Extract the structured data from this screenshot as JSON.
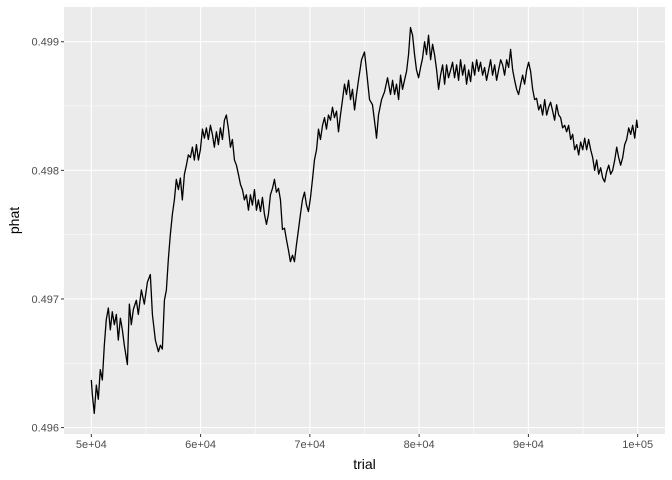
{
  "chart_data": {
    "type": "line",
    "title": "",
    "xlabel": "trial",
    "ylabel": "phat",
    "xlim": [
      47500,
      102500
    ],
    "ylim": [
      0.49595,
      0.49927
    ],
    "x_ticks": [
      50000,
      60000,
      70000,
      80000,
      90000,
      100000
    ],
    "x_tick_labels": [
      "5e+04",
      "6e+04",
      "7e+04",
      "8e+04",
      "9e+04",
      "1e+05"
    ],
    "y_ticks": [
      0.496,
      0.497,
      0.498,
      0.499
    ],
    "y_tick_labels": [
      "0.496",
      "0.497",
      "0.498",
      "0.499"
    ],
    "grid": true,
    "panel_background": "#ebebeb",
    "grid_color": "#ffffff",
    "line_color": "#000000",
    "series": [
      {
        "trial": [
          50000,
          50090,
          50270,
          50460,
          50640,
          50820,
          51010,
          51190,
          51370,
          51560,
          51740,
          51920,
          52110,
          52290,
          52470,
          52660,
          52840,
          53020,
          53300,
          53480,
          53660,
          53850,
          54120,
          54300,
          54580,
          54850,
          55130,
          55400,
          55590,
          55860,
          56140,
          56320,
          56500,
          56690,
          56870,
          57050,
          57230,
          57420,
          57600,
          57780,
          57970,
          58150,
          58330,
          58520,
          58700,
          58880,
          59070,
          59250,
          59430,
          59620,
          59800,
          59980,
          60170,
          60350,
          60530,
          60710,
          60900,
          61080,
          61260,
          61450,
          61630,
          61810,
          62000,
          62180,
          62360,
          62550,
          62730,
          62910,
          63100,
          63280,
          63460,
          63650,
          63830,
          64010,
          64190,
          64380,
          64560,
          64740,
          64930,
          65110,
          65290,
          65480,
          65660,
          65840,
          66030,
          66210,
          66390,
          66580,
          66760,
          66940,
          67130,
          67310,
          67490,
          67680,
          67860,
          68040,
          68220,
          68410,
          68590,
          68770,
          68960,
          69140,
          69320,
          69510,
          69690,
          69870,
          70060,
          70240,
          70420,
          70610,
          70790,
          70970,
          71160,
          71340,
          71520,
          71700,
          71890,
          72070,
          72250,
          72440,
          72620,
          72800,
          72990,
          73170,
          73350,
          73540,
          73720,
          73900,
          74090,
          74270,
          74450,
          74730,
          75000,
          75180,
          75460,
          75730,
          76010,
          76100,
          76280,
          76560,
          76830,
          77110,
          77380,
          77570,
          77750,
          77930,
          78120,
          78300,
          78480,
          78660,
          78850,
          79030,
          79210,
          79400,
          79580,
          79760,
          79950,
          80130,
          80310,
          80500,
          80680,
          80860,
          81050,
          81230,
          81410,
          81600,
          81780,
          81960,
          82150,
          82330,
          82510,
          82690,
          82880,
          83060,
          83240,
          83430,
          83610,
          83790,
          83980,
          84160,
          84340,
          84530,
          84710,
          84890,
          85080,
          85260,
          85440,
          85620,
          85810,
          85990,
          86170,
          86360,
          86540,
          86720,
          86910,
          87090,
          87270,
          87460,
          87640,
          87820,
          88010,
          88190,
          88370,
          88560,
          88740,
          88920,
          89100,
          89290,
          89470,
          89650,
          89840,
          90020,
          90200,
          90390,
          90570,
          90750,
          90940,
          91120,
          91300,
          91490,
          91670,
          91850,
          92030,
          92220,
          92400,
          92580,
          92770,
          92950,
          93130,
          93320,
          93500,
          93680,
          93870,
          94050,
          94230,
          94420,
          94600,
          94780,
          94970,
          95150,
          95330,
          95510,
          95700,
          95880,
          96060,
          96250,
          96430,
          96610,
          96800,
          96980,
          97160,
          97350,
          97530,
          97710,
          97900,
          98080,
          98260,
          98440,
          98630,
          98810,
          98990,
          99180,
          99360,
          99540,
          99730,
          99910,
          100000
        ],
        "phat": [
          0.49637,
          0.49626,
          0.49611,
          0.49633,
          0.49622,
          0.49645,
          0.49637,
          0.49664,
          0.49684,
          0.49693,
          0.49676,
          0.4969,
          0.4968,
          0.49688,
          0.49668,
          0.49685,
          0.49676,
          0.49664,
          0.49649,
          0.49696,
          0.4968,
          0.49692,
          0.49699,
          0.49688,
          0.49707,
          0.49696,
          0.49713,
          0.49719,
          0.49688,
          0.49668,
          0.49659,
          0.49664,
          0.49661,
          0.49699,
          0.49707,
          0.49731,
          0.4975,
          0.49766,
          0.49777,
          0.49793,
          0.49785,
          0.49794,
          0.49777,
          0.49797,
          0.49804,
          0.49812,
          0.4981,
          0.49818,
          0.49808,
          0.4982,
          0.49808,
          0.49816,
          0.49832,
          0.49825,
          0.49833,
          0.49824,
          0.49835,
          0.49828,
          0.49818,
          0.4983,
          0.4982,
          0.49833,
          0.49824,
          0.49839,
          0.49843,
          0.49832,
          0.49818,
          0.49824,
          0.49808,
          0.49804,
          0.49797,
          0.49789,
          0.49785,
          0.49777,
          0.49781,
          0.49769,
          0.49781,
          0.49773,
          0.49785,
          0.49769,
          0.49777,
          0.49768,
          0.49779,
          0.49766,
          0.49758,
          0.49766,
          0.49781,
          0.49786,
          0.49793,
          0.49783,
          0.49786,
          0.49777,
          0.49754,
          0.49755,
          0.49746,
          0.49738,
          0.49729,
          0.49734,
          0.49729,
          0.49742,
          0.49754,
          0.49766,
          0.49777,
          0.49783,
          0.49773,
          0.49768,
          0.49779,
          0.49793,
          0.49808,
          0.49816,
          0.49832,
          0.49824,
          0.49835,
          0.49841,
          0.49832,
          0.49843,
          0.49839,
          0.49849,
          0.49841,
          0.49846,
          0.4983,
          0.49843,
          0.49855,
          0.49867,
          0.49859,
          0.4987,
          0.49855,
          0.49863,
          0.49847,
          0.49859,
          0.4987,
          0.49886,
          0.49892,
          0.49878,
          0.49855,
          0.49851,
          0.49832,
          0.49825,
          0.49843,
          0.49855,
          0.49861,
          0.49872,
          0.49859,
          0.4987,
          0.49859,
          0.49867,
          0.49855,
          0.49874,
          0.49863,
          0.4987,
          0.49877,
          0.4989,
          0.49911,
          0.49905,
          0.4989,
          0.49878,
          0.49872,
          0.4988,
          0.49887,
          0.499,
          0.4989,
          0.49905,
          0.49886,
          0.49898,
          0.4989,
          0.49878,
          0.49863,
          0.49874,
          0.49882,
          0.49867,
          0.49882,
          0.49872,
          0.49878,
          0.49884,
          0.49872,
          0.49882,
          0.4987,
          0.49886,
          0.49874,
          0.49882,
          0.49867,
          0.49878,
          0.49869,
          0.49884,
          0.49874,
          0.49886,
          0.49877,
          0.49884,
          0.49874,
          0.4988,
          0.4987,
          0.49878,
          0.49886,
          0.49874,
          0.49882,
          0.4987,
          0.49878,
          0.49886,
          0.49882,
          0.49874,
          0.49886,
          0.4988,
          0.49894,
          0.49878,
          0.4987,
          0.49863,
          0.49859,
          0.49867,
          0.49874,
          0.49867,
          0.49878,
          0.49884,
          0.49877,
          0.49863,
          0.49855,
          0.49856,
          0.49847,
          0.49851,
          0.49843,
          0.49855,
          0.49843,
          0.49849,
          0.49853,
          0.49846,
          0.49839,
          0.49851,
          0.49843,
          0.49841,
          0.49833,
          0.49835,
          0.4983,
          0.49835,
          0.49824,
          0.49828,
          0.49816,
          0.4982,
          0.49812,
          0.49822,
          0.49816,
          0.49825,
          0.49816,
          0.49824,
          0.49816,
          0.4981,
          0.498,
          0.49808,
          0.49797,
          0.49802,
          0.49794,
          0.49791,
          0.49799,
          0.49804,
          0.49797,
          0.498,
          0.49808,
          0.49818,
          0.4981,
          0.49804,
          0.4981,
          0.4982,
          0.49824,
          0.49833,
          0.49828,
          0.49835,
          0.49825,
          0.49839,
          0.49833
        ]
      }
    ]
  }
}
